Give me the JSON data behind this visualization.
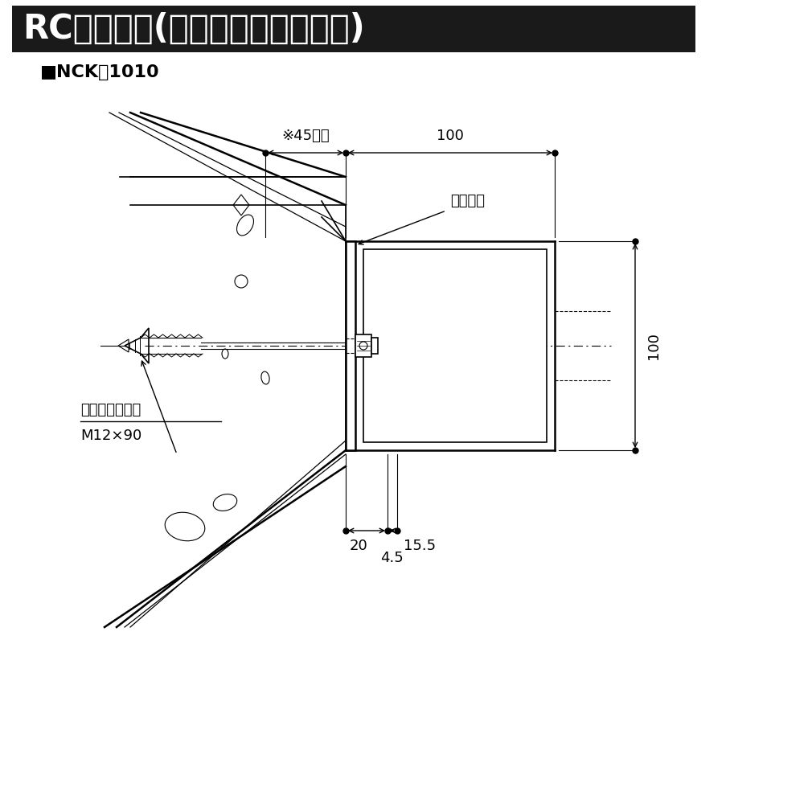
{
  "title": "RC壁施工例(オールアンカー仕様)",
  "subtitle": "■NCK－1010",
  "bg_color": "#ffffff",
  "title_bg_color": "#1a1a1a",
  "title_text_color": "#ffffff",
  "dim_100_horiz": "100",
  "dim_45": "※45以上",
  "dim_100_vert": "100",
  "dim_20": "20",
  "dim_15_5": "15.5",
  "dim_4_5": "4.5",
  "label_fixture": "取付金具",
  "label_anchor": "オールアンカー",
  "label_anchor2": "M12×90"
}
